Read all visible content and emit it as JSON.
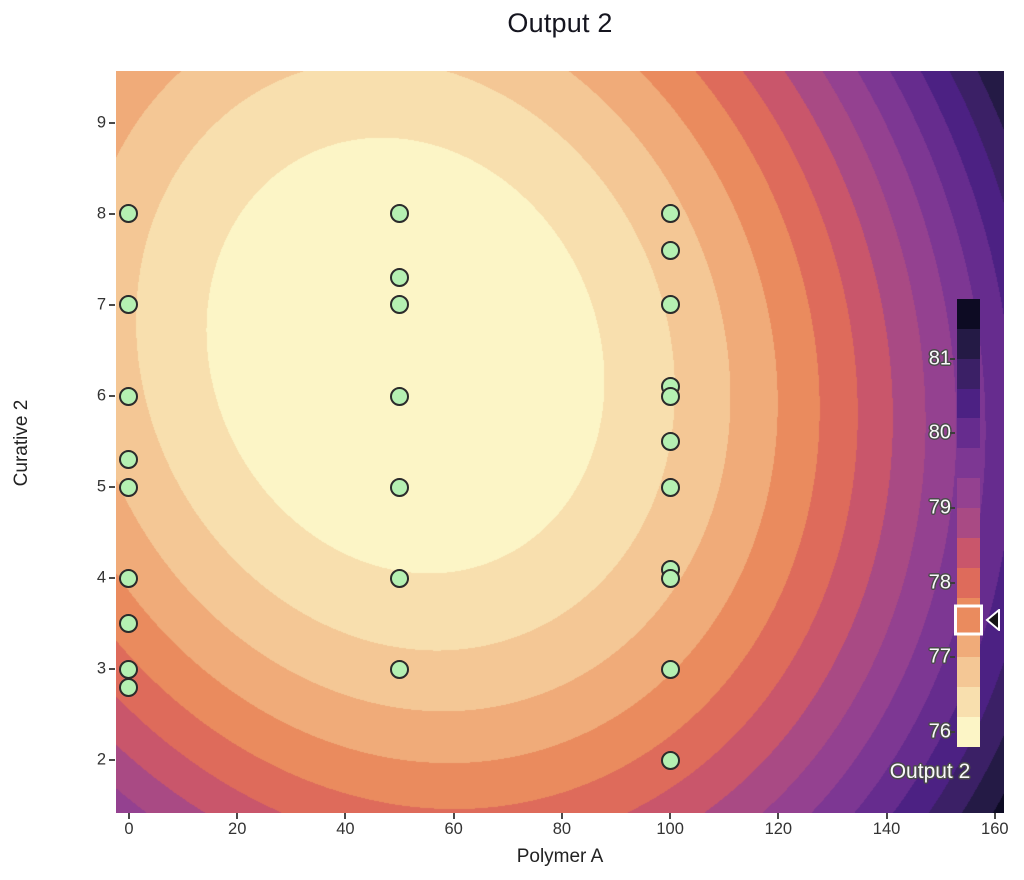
{
  "title": "Output 2",
  "axes": {
    "x": {
      "label": "Polymer A",
      "ticks": [
        0,
        20,
        40,
        60,
        80,
        100,
        120,
        140,
        160
      ],
      "min": -2.4,
      "max": 161.7
    },
    "y": {
      "label": "Curative 2",
      "ticks": [
        9,
        8,
        7,
        6,
        5,
        4,
        3,
        2
      ],
      "min": 1.42,
      "max": 9.57
    }
  },
  "colorbar": {
    "title": "Output 2",
    "ticks": [
      81,
      80,
      79,
      78,
      77,
      76
    ],
    "vmin": 75.8,
    "vmax": 81.8,
    "marker_value": 77.5
  },
  "chart_data": {
    "type": "heatmap",
    "subtype": "filled_contour_with_scatter",
    "title": "Output 2",
    "xlabel": "Polymer A",
    "ylabel": "Curative 2",
    "xlim": [
      -2.4,
      161.7
    ],
    "ylim": [
      1.42,
      9.57
    ],
    "grid": false,
    "legend_position": "right-inside",
    "contour_levels": {
      "min": 75.8,
      "step": 0.4,
      "count": 15
    },
    "palette_low_to_high": [
      "#fcf5c6",
      "#f8dfae",
      "#f4c795",
      "#f0ab79",
      "#ea8b5e",
      "#de6b5b",
      "#c9566b",
      "#a94a84",
      "#944190",
      "#7d3793",
      "#662c8e",
      "#4c2183",
      "#3b2066",
      "#241a45",
      "#0d0b23"
    ],
    "surface_model": {
      "form": "z = z0 + A*(x-x0)^2 + B*(y-y0)^2 + C*(x-x0)*(y-y0)",
      "z0": 75.72,
      "x0": 51,
      "y0": 6.45,
      "A": 0.00036,
      "B": 0.085,
      "C": 0.0013
    },
    "scatter_points": [
      [
        0,
        8
      ],
      [
        0,
        7
      ],
      [
        0,
        6
      ],
      [
        0,
        5.3
      ],
      [
        0,
        5
      ],
      [
        0,
        4
      ],
      [
        0,
        3.5
      ],
      [
        0,
        3
      ],
      [
        0,
        2.8
      ],
      [
        50,
        8
      ],
      [
        50,
        7.3
      ],
      [
        50,
        7
      ],
      [
        50,
        6
      ],
      [
        50,
        5
      ],
      [
        50,
        4
      ],
      [
        50,
        3
      ],
      [
        100,
        8
      ],
      [
        100,
        7.6
      ],
      [
        100,
        7
      ],
      [
        100,
        6.1
      ],
      [
        100,
        6
      ],
      [
        100,
        5.5
      ],
      [
        100,
        5
      ],
      [
        100,
        4.1
      ],
      [
        100,
        4
      ],
      [
        100,
        3
      ],
      [
        100,
        2
      ]
    ],
    "point_style": {
      "fill": "#b5f0b2",
      "stroke": "#2b2b2b"
    }
  },
  "colors": {
    "background": "#ffffff",
    "title_text": "#15151f",
    "tick_text": "#333333",
    "cb_label_fill": "#fafafa",
    "cb_label_outline": "#4a4a4a",
    "marker_arrow": "#151515"
  }
}
